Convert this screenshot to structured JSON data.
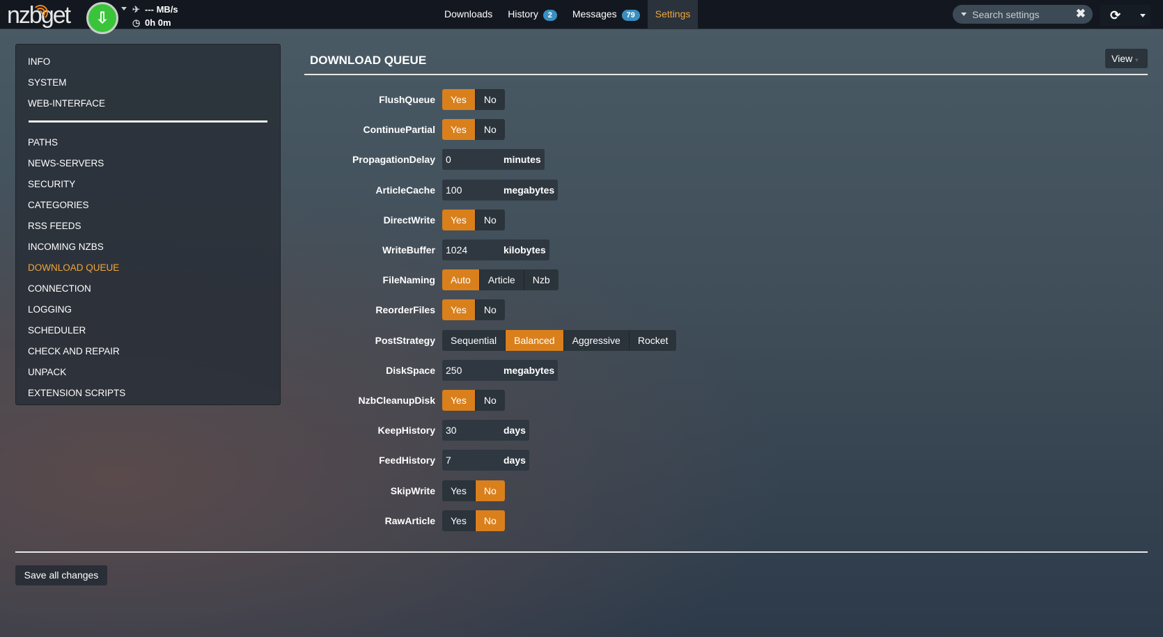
{
  "header": {
    "logo": "nzbget",
    "speed": "--- MB/s",
    "time": "0h 0m",
    "tabs": [
      {
        "label": "Downloads"
      },
      {
        "label": "History",
        "badge": "2"
      },
      {
        "label": "Messages",
        "badge": "79"
      },
      {
        "label": "Settings",
        "active": true
      }
    ],
    "search_placeholder": "Search settings"
  },
  "sidebar": {
    "items": [
      {
        "label": "INFO"
      },
      {
        "label": "SYSTEM"
      },
      {
        "label": "WEB-INTERFACE"
      },
      {
        "label": "PATHS"
      },
      {
        "label": "NEWS-SERVERS"
      },
      {
        "label": "SECURITY"
      },
      {
        "label": "CATEGORIES"
      },
      {
        "label": "RSS FEEDS"
      },
      {
        "label": "INCOMING NZBS"
      },
      {
        "label": "DOWNLOAD QUEUE",
        "active": true
      },
      {
        "label": "CONNECTION"
      },
      {
        "label": "LOGGING"
      },
      {
        "label": "SCHEDULER"
      },
      {
        "label": "CHECK AND REPAIR"
      },
      {
        "label": "UNPACK"
      },
      {
        "label": "EXTENSION SCRIPTS"
      }
    ]
  },
  "main": {
    "title": "DOWNLOAD QUEUE",
    "view_label": "View",
    "settings": [
      {
        "name": "FlushQueue",
        "type": "switch",
        "options": [
          "Yes",
          "No"
        ],
        "selected": "Yes"
      },
      {
        "name": "ContinuePartial",
        "type": "switch",
        "options": [
          "Yes",
          "No"
        ],
        "selected": "Yes"
      },
      {
        "name": "PropagationDelay",
        "type": "number",
        "value": "0",
        "unit": "minutes"
      },
      {
        "name": "ArticleCache",
        "type": "number",
        "value": "100",
        "unit": "megabytes"
      },
      {
        "name": "DirectWrite",
        "type": "switch",
        "options": [
          "Yes",
          "No"
        ],
        "selected": "Yes"
      },
      {
        "name": "WriteBuffer",
        "type": "number",
        "value": "1024",
        "unit": "kilobytes"
      },
      {
        "name": "FileNaming",
        "type": "switch",
        "options": [
          "Auto",
          "Article",
          "Nzb"
        ],
        "selected": "Auto"
      },
      {
        "name": "ReorderFiles",
        "type": "switch",
        "options": [
          "Yes",
          "No"
        ],
        "selected": "Yes"
      },
      {
        "name": "PostStrategy",
        "type": "switch",
        "options": [
          "Sequential",
          "Balanced",
          "Aggressive",
          "Rocket"
        ],
        "selected": "Balanced"
      },
      {
        "name": "DiskSpace",
        "type": "number",
        "value": "250",
        "unit": "megabytes"
      },
      {
        "name": "NzbCleanupDisk",
        "type": "switch",
        "options": [
          "Yes",
          "No"
        ],
        "selected": "Yes"
      },
      {
        "name": "KeepHistory",
        "type": "number",
        "value": "30",
        "unit": "days"
      },
      {
        "name": "FeedHistory",
        "type": "number",
        "value": "7",
        "unit": "days"
      },
      {
        "name": "SkipWrite",
        "type": "switch",
        "options": [
          "Yes",
          "No"
        ],
        "selected": "No"
      },
      {
        "name": "RawArticle",
        "type": "switch",
        "options": [
          "Yes",
          "No"
        ],
        "selected": "No"
      }
    ],
    "save_label": "Save all changes"
  },
  "colors": {
    "accent": "#d9801c",
    "active_text": "#f0a63a",
    "badge": "#3a8fc0",
    "download_button": "#3ac43a"
  }
}
